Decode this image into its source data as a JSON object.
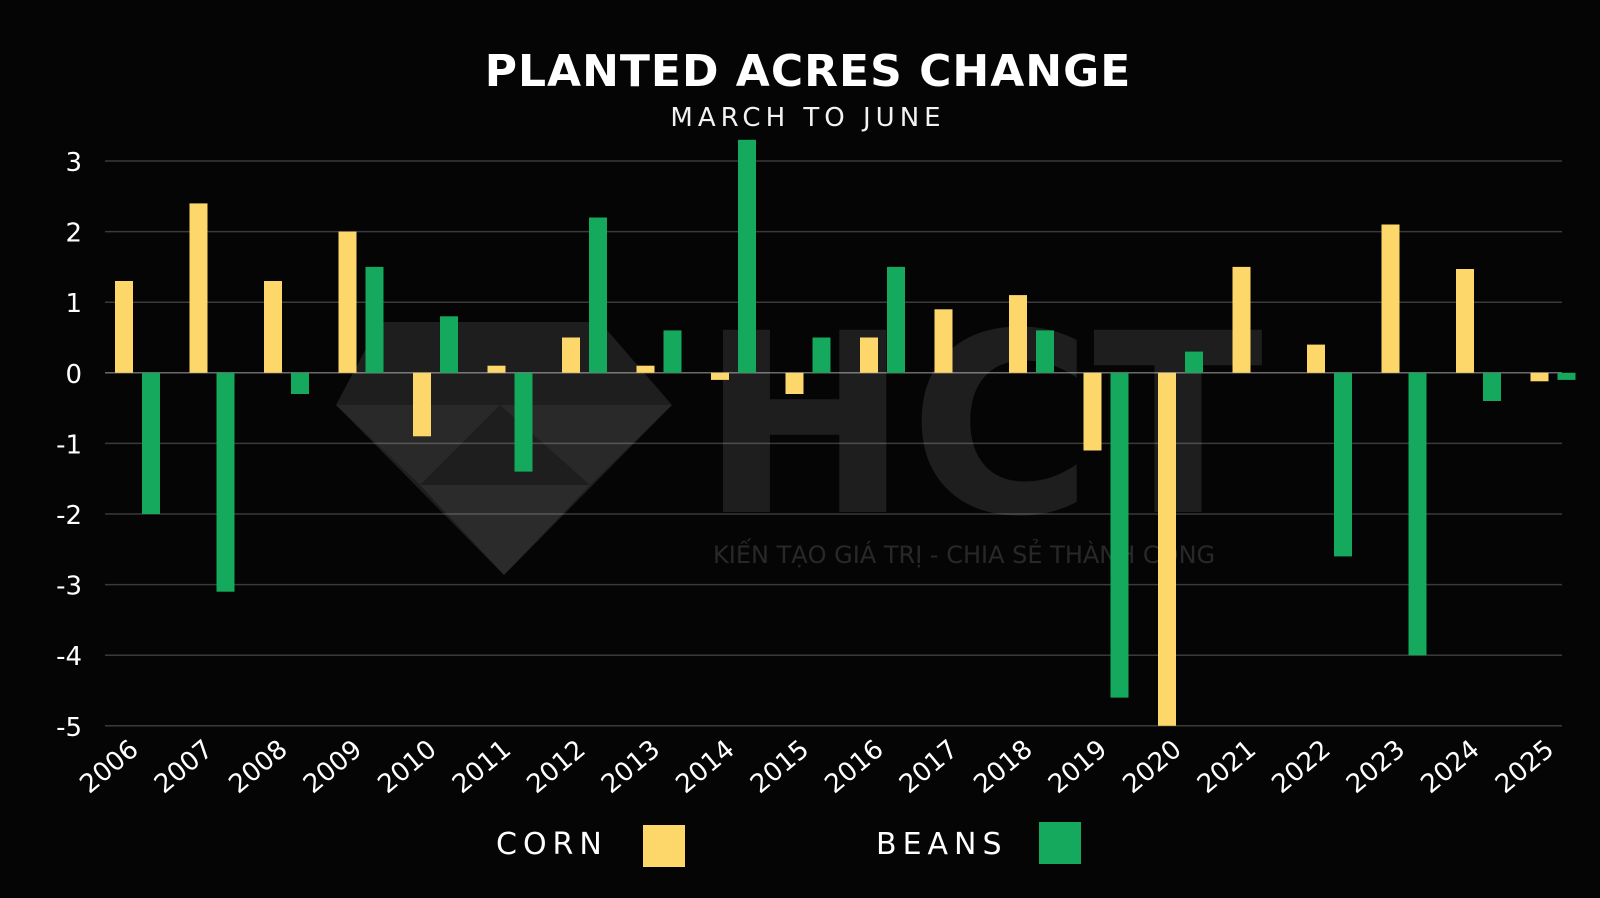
{
  "chart_data": {
    "type": "bar",
    "title": "PLANTED ACRES CHANGE",
    "subtitle": "MARCH TO JUNE",
    "categories": [
      "2006",
      "2007",
      "2008",
      "2009",
      "2010",
      "2011",
      "2012",
      "2013",
      "2014",
      "2015",
      "2016",
      "2017",
      "2018",
      "2019",
      "2020",
      "2021",
      "2022",
      "2023",
      "2024",
      "2025"
    ],
    "series": [
      {
        "name": "CORN",
        "color": "#FDD76A",
        "values": [
          1.3,
          2.4,
          1.3,
          2.0,
          -0.9,
          0.1,
          0.5,
          0.1,
          -0.1,
          -0.3,
          0.5,
          0.9,
          1.1,
          -1.1,
          -5.0,
          1.5,
          0.4,
          2.1,
          1.47,
          -0.12
        ]
      },
      {
        "name": "BEANS",
        "color": "#14A95C",
        "values": [
          -2.0,
          -3.1,
          -0.3,
          1.5,
          0.8,
          -1.4,
          2.2,
          0.6,
          3.3,
          0.5,
          1.5,
          0.0,
          0.6,
          -4.6,
          0.3,
          0.0,
          -2.6,
          -4.0,
          -0.4,
          -0.1
        ]
      }
    ],
    "yticks": [
      "3",
      "2",
      "1",
      "0",
      "-1",
      "-2",
      "-3",
      "-4",
      "-5"
    ],
    "ylim": [
      -5,
      3.3
    ],
    "grid": true,
    "legend_position": "bottom-center"
  },
  "watermark": {
    "brand": "HCT",
    "slogan": "KIẾN TẠO GIÁ TRỊ - CHIA SẺ THÀNH CÔNG"
  }
}
